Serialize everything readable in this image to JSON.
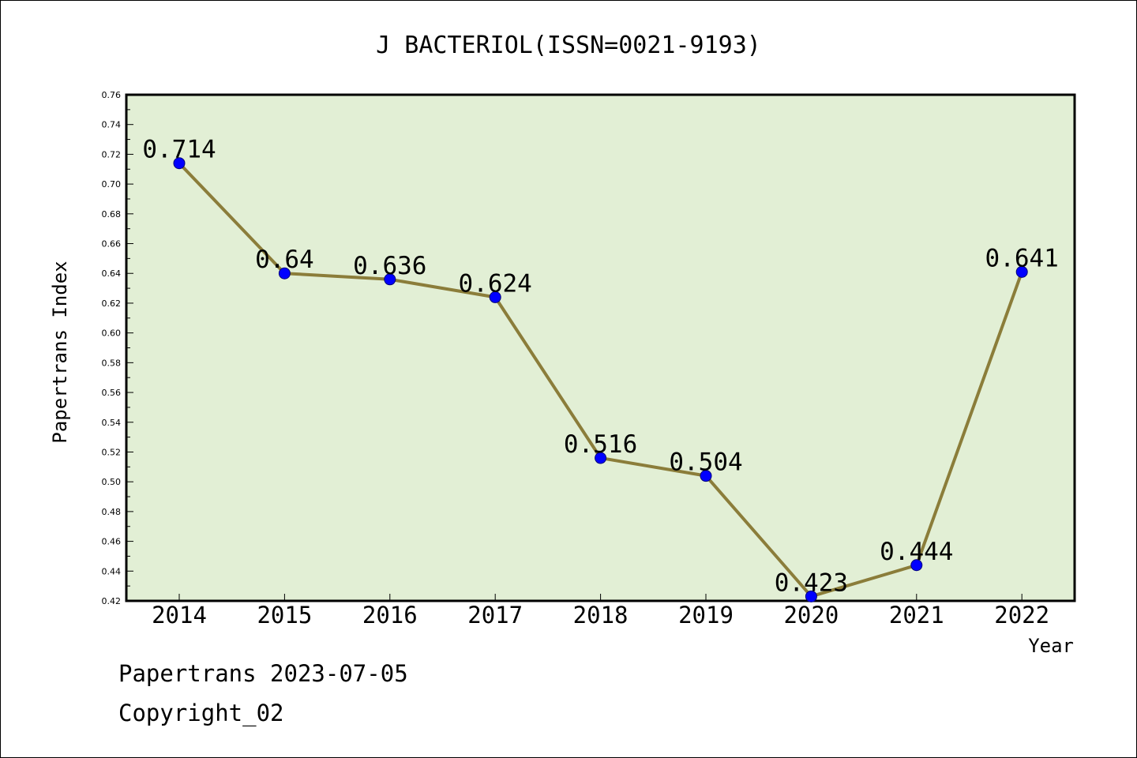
{
  "chart_data": {
    "type": "line",
    "title": "J BACTERIOL(ISSN=0021-9193)",
    "xlabel": "Year",
    "ylabel": "Papertrans Index",
    "categories": [
      "2014",
      "2015",
      "2016",
      "2017",
      "2018",
      "2019",
      "2020",
      "2021",
      "2022"
    ],
    "values": [
      0.714,
      0.64,
      0.636,
      0.624,
      0.516,
      0.504,
      0.423,
      0.444,
      0.641
    ],
    "data_labels": [
      "0.714",
      "0.64",
      "0.636",
      "0.624",
      "0.516",
      "0.504",
      "0.423",
      "0.444",
      "0.641"
    ],
    "ylim": [
      0.42,
      0.76
    ],
    "yticks": [
      "0.42",
      "0.44",
      "0.46",
      "0.48",
      "0.50",
      "0.52",
      "0.54",
      "0.56",
      "0.58",
      "0.60",
      "0.62",
      "0.64",
      "0.66",
      "0.68",
      "0.70",
      "0.72",
      "0.74",
      "0.76"
    ],
    "grid": false,
    "colors": {
      "plot_background": "#e2efd5",
      "line": "#8b7d3a",
      "marker": "#0000ff"
    }
  },
  "footer": {
    "line1": "Papertrans 2023-07-05",
    "line2": "Copyright_02"
  }
}
